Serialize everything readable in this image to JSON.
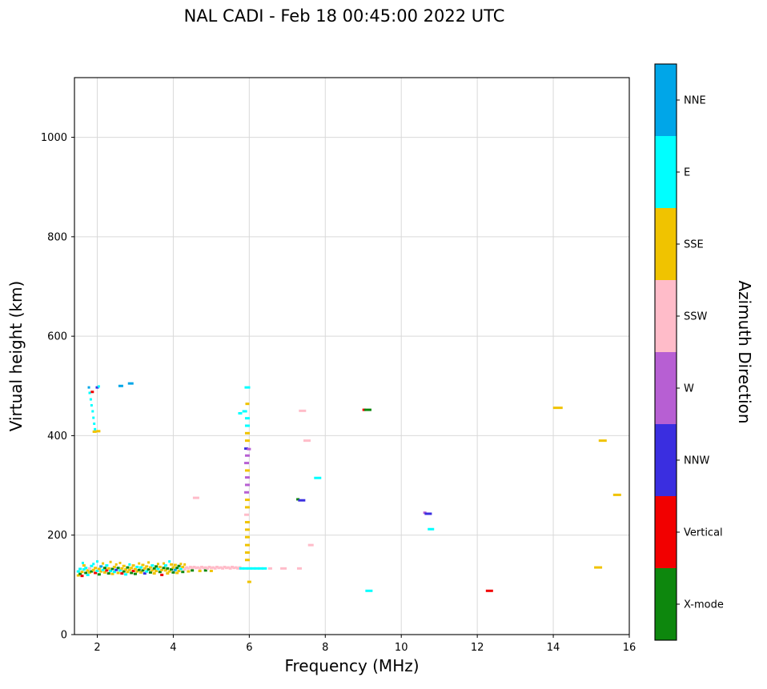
{
  "chart_data": {
    "type": "scatter",
    "title": "NAL CADI - Feb 18 00:45:00 2022 UTC",
    "xlabel": "Frequency (MHz)",
    "ylabel": "Virtual height (km)",
    "xlim": [
      1.4,
      16
    ],
    "ylim": [
      0,
      1120
    ],
    "xticks": [
      2,
      4,
      6,
      8,
      10,
      12,
      14,
      16
    ],
    "yticks": [
      0,
      200,
      400,
      600,
      800,
      1000
    ],
    "grid": true,
    "grid_color": "#d9d9d9",
    "colorbar": {
      "title": "Azimuth Direction",
      "categories": [
        {
          "key": "NNE",
          "label": "NNE",
          "color": "#00a6e8"
        },
        {
          "key": "E",
          "label": "E",
          "color": "#00ffff"
        },
        {
          "key": "SSE",
          "label": "SSE",
          "color": "#f0c300"
        },
        {
          "key": "SSW",
          "label": "SSW",
          "color": "#ffbcc9"
        },
        {
          "key": "W",
          "label": "W",
          "color": "#b75fd3"
        },
        {
          "key": "NNW",
          "label": "NNW",
          "color": "#3a2ee0"
        },
        {
          "key": "V",
          "label": "Vertical",
          "color": "#f20000"
        },
        {
          "key": "X",
          "label": "X-mode",
          "color": "#0d870d"
        }
      ]
    },
    "points": [
      [
        1.78,
        497,
        "NNE",
        3
      ],
      [
        1.8,
        486,
        "E",
        3
      ],
      [
        1.83,
        473,
        "E",
        3
      ],
      [
        1.85,
        461,
        "E",
        3
      ],
      [
        1.88,
        449,
        "E",
        3
      ],
      [
        1.9,
        436,
        "E",
        3
      ],
      [
        1.92,
        424,
        "E",
        3
      ],
      [
        1.94,
        413,
        "E",
        3
      ],
      [
        1.87,
        488,
        "V",
        4
      ],
      [
        2.0,
        497,
        "NNW",
        4
      ],
      [
        2.04,
        499,
        "E",
        3
      ],
      [
        1.93,
        408,
        "SSE",
        5
      ],
      [
        2.03,
        409,
        "SSE",
        5
      ],
      [
        2.62,
        500,
        "NNE",
        6
      ],
      [
        2.88,
        505,
        "NNE",
        7
      ],
      [
        1.5,
        127,
        "E"
      ],
      [
        1.5,
        119,
        "SSE"
      ],
      [
        1.55,
        132,
        "E"
      ],
      [
        1.55,
        122,
        "X"
      ],
      [
        1.6,
        126,
        "SSE"
      ],
      [
        1.6,
        118,
        "V"
      ],
      [
        1.62,
        144,
        "E",
        3
      ],
      [
        1.65,
        131,
        "E"
      ],
      [
        1.65,
        139,
        "SSE"
      ],
      [
        1.7,
        124,
        "X"
      ],
      [
        1.7,
        134,
        "E"
      ],
      [
        1.75,
        129,
        "SSE"
      ],
      [
        1.75,
        120,
        "E"
      ],
      [
        1.8,
        133,
        "SSW"
      ],
      [
        1.8,
        125,
        "SSE"
      ],
      [
        1.85,
        138,
        "E"
      ],
      [
        1.85,
        127,
        "X"
      ],
      [
        1.9,
        130,
        "SSE"
      ],
      [
        1.9,
        142,
        "E",
        3
      ],
      [
        1.95,
        124,
        "V"
      ],
      [
        1.95,
        134,
        "SSE"
      ],
      [
        2.0,
        128,
        "E"
      ],
      [
        2.0,
        147,
        "E",
        3
      ],
      [
        2.05,
        132,
        "SSE"
      ],
      [
        2.05,
        121,
        "X"
      ],
      [
        2.1,
        137,
        "NNE"
      ],
      [
        2.1,
        127,
        "SSE"
      ],
      [
        2.15,
        130,
        "E"
      ],
      [
        2.15,
        143,
        "SSE",
        3
      ],
      [
        2.2,
        125,
        "SSE"
      ],
      [
        2.2,
        134,
        "X"
      ],
      [
        2.25,
        129,
        "V"
      ],
      [
        2.25,
        139,
        "E"
      ],
      [
        2.3,
        133,
        "SSE"
      ],
      [
        2.3,
        123,
        "X"
      ],
      [
        2.35,
        128,
        "E"
      ],
      [
        2.35,
        146,
        "SSE",
        3
      ],
      [
        2.4,
        132,
        "X"
      ],
      [
        2.4,
        122,
        "SSE"
      ],
      [
        2.45,
        136,
        "SSE"
      ],
      [
        2.45,
        126,
        "E"
      ],
      [
        2.5,
        130,
        "NNW"
      ],
      [
        2.5,
        141,
        "SSE",
        3
      ],
      [
        2.55,
        124,
        "SSE"
      ],
      [
        2.55,
        134,
        "X"
      ],
      [
        2.6,
        129,
        "E"
      ],
      [
        2.6,
        144,
        "SSE",
        3
      ],
      [
        2.65,
        133,
        "SSE"
      ],
      [
        2.65,
        123,
        "V"
      ],
      [
        2.7,
        127,
        "X"
      ],
      [
        2.7,
        138,
        "SSE"
      ],
      [
        2.75,
        131,
        "SSE"
      ],
      [
        2.75,
        121,
        "E"
      ],
      [
        2.8,
        135,
        "X"
      ],
      [
        2.8,
        126,
        "SSE"
      ],
      [
        2.85,
        130,
        "SSE"
      ],
      [
        2.85,
        141,
        "E",
        3
      ],
      [
        2.9,
        124,
        "X"
      ],
      [
        2.9,
        134,
        "SSE"
      ],
      [
        2.95,
        128,
        "V"
      ],
      [
        2.95,
        139,
        "SSE"
      ],
      [
        3.0,
        132,
        "SSE"
      ],
      [
        3.0,
        122,
        "X"
      ],
      [
        3.05,
        136,
        "E"
      ],
      [
        3.05,
        127,
        "SSE"
      ],
      [
        3.1,
        130,
        "X"
      ],
      [
        3.1,
        143,
        "SSE",
        3
      ],
      [
        3.15,
        125,
        "SSE"
      ],
      [
        3.15,
        135,
        "E"
      ],
      [
        3.2,
        129,
        "X"
      ],
      [
        3.2,
        140,
        "SSE"
      ],
      [
        3.25,
        133,
        "SSE"
      ],
      [
        3.25,
        123,
        "NNW"
      ],
      [
        3.3,
        127,
        "E"
      ],
      [
        3.3,
        137,
        "SSE"
      ],
      [
        3.35,
        131,
        "X"
      ],
      [
        3.35,
        145,
        "SSE",
        3
      ],
      [
        3.4,
        135,
        "SSE"
      ],
      [
        3.4,
        125,
        "X"
      ],
      [
        3.45,
        129,
        "SSE"
      ],
      [
        3.45,
        139,
        "E"
      ],
      [
        3.5,
        133,
        "X"
      ],
      [
        3.5,
        123,
        "SSE"
      ],
      [
        3.55,
        128,
        "SSE"
      ],
      [
        3.55,
        137,
        "X"
      ],
      [
        3.6,
        132,
        "E"
      ],
      [
        3.6,
        142,
        "SSE",
        3
      ],
      [
        3.65,
        126,
        "X"
      ],
      [
        3.65,
        136,
        "SSE"
      ],
      [
        3.7,
        130,
        "SSE"
      ],
      [
        3.7,
        120,
        "V"
      ],
      [
        3.75,
        134,
        "X"
      ],
      [
        3.75,
        143,
        "SSE",
        3
      ],
      [
        3.8,
        129,
        "SSE"
      ],
      [
        3.8,
        139,
        "E"
      ],
      [
        3.85,
        133,
        "X"
      ],
      [
        3.85,
        123,
        "SSE"
      ],
      [
        3.9,
        127,
        "SSE"
      ],
      [
        3.9,
        147,
        "E",
        3
      ],
      [
        3.95,
        131,
        "X"
      ],
      [
        3.95,
        141,
        "SSE"
      ],
      [
        4.0,
        135,
        "SSE"
      ],
      [
        4.0,
        125,
        "X"
      ],
      [
        4.05,
        130,
        "NNE"
      ],
      [
        4.05,
        140,
        "SSE"
      ],
      [
        4.1,
        134,
        "X"
      ],
      [
        4.1,
        124,
        "SSE"
      ],
      [
        4.15,
        128,
        "SSE"
      ],
      [
        4.15,
        138,
        "X"
      ],
      [
        4.2,
        132,
        "E"
      ],
      [
        4.2,
        142,
        "SSE",
        3
      ],
      [
        4.25,
        136,
        "SSE"
      ],
      [
        4.25,
        126,
        "X"
      ],
      [
        4.3,
        131,
        "SSW"
      ],
      [
        4.3,
        141,
        "SSE",
        3
      ],
      [
        4.35,
        135,
        "SSW"
      ],
      [
        4.4,
        133,
        "SSW"
      ],
      [
        4.4,
        127,
        "SSE"
      ],
      [
        4.45,
        136,
        "SSW"
      ],
      [
        4.5,
        134,
        "SSW"
      ],
      [
        4.5,
        129,
        "X"
      ],
      [
        4.55,
        136,
        "SSW"
      ],
      [
        4.6,
        134,
        "SSW"
      ],
      [
        4.6,
        275,
        "SSW",
        8
      ],
      [
        4.65,
        135,
        "SSW"
      ],
      [
        4.7,
        133,
        "SSW"
      ],
      [
        4.7,
        128,
        "SSE"
      ],
      [
        4.75,
        136,
        "SSW"
      ],
      [
        4.8,
        134,
        "SSW"
      ],
      [
        4.85,
        135,
        "SSW"
      ],
      [
        4.85,
        129,
        "X"
      ],
      [
        4.9,
        133,
        "SSW"
      ],
      [
        4.95,
        136,
        "SSW"
      ],
      [
        5.0,
        134,
        "SSW"
      ],
      [
        5.0,
        128,
        "SSE"
      ],
      [
        5.05,
        135,
        "SSW"
      ],
      [
        5.1,
        133,
        "SSW"
      ],
      [
        5.15,
        136,
        "SSW"
      ],
      [
        5.2,
        134,
        "SSW"
      ],
      [
        5.25,
        135,
        "SSW"
      ],
      [
        5.3,
        133,
        "SSW"
      ],
      [
        5.35,
        136,
        "SSW"
      ],
      [
        5.4,
        134,
        "SSW"
      ],
      [
        5.45,
        135,
        "SSW"
      ],
      [
        5.5,
        133,
        "SSW"
      ],
      [
        5.55,
        136,
        "SSW"
      ],
      [
        5.6,
        134,
        "SSW"
      ],
      [
        5.65,
        135,
        "SSW"
      ],
      [
        5.7,
        133,
        "SSW"
      ],
      [
        5.75,
        135,
        "SSW"
      ],
      [
        5.8,
        133,
        "E",
        6
      ],
      [
        5.9,
        133,
        "E",
        6
      ],
      [
        6.0,
        133,
        "E",
        6
      ],
      [
        6.1,
        133,
        "E",
        6
      ],
      [
        6.2,
        133,
        "E",
        6
      ],
      [
        6.3,
        133,
        "E",
        6
      ],
      [
        6.4,
        133,
        "E",
        6
      ],
      [
        6.55,
        133,
        "SSW",
        5
      ],
      [
        6.9,
        133,
        "SSW",
        8
      ],
      [
        7.32,
        133,
        "SSW",
        6
      ],
      [
        6.0,
        106,
        "SSE",
        5
      ],
      [
        5.95,
        150,
        "SSE",
        6
      ],
      [
        5.95,
        165,
        "SSE",
        6
      ],
      [
        5.95,
        180,
        "SSE",
        6
      ],
      [
        5.95,
        196,
        "SSE",
        6
      ],
      [
        5.95,
        211,
        "SSE",
        6
      ],
      [
        5.95,
        226,
        "SSE",
        6
      ],
      [
        5.93,
        241,
        "SSW",
        6
      ],
      [
        5.95,
        256,
        "SSE",
        6
      ],
      [
        5.95,
        271,
        "SSE",
        6
      ],
      [
        5.93,
        286,
        "W",
        6
      ],
      [
        5.95,
        301,
        "W",
        6
      ],
      [
        5.95,
        316,
        "W",
        6
      ],
      [
        5.95,
        330,
        "SSE",
        6
      ],
      [
        5.93,
        345,
        "W",
        6
      ],
      [
        5.95,
        360,
        "W",
        6
      ],
      [
        5.92,
        374,
        "NNW",
        5
      ],
      [
        5.99,
        373,
        "W",
        5
      ],
      [
        5.95,
        390,
        "SSE",
        6
      ],
      [
        5.95,
        405,
        "SSE",
        6
      ],
      [
        5.95,
        420,
        "E",
        6
      ],
      [
        5.95,
        435,
        "E",
        6
      ],
      [
        5.88,
        449,
        "E",
        6
      ],
      [
        5.76,
        445,
        "E",
        5
      ],
      [
        5.95,
        464,
        "SSE",
        5
      ],
      [
        5.95,
        497,
        "E",
        7
      ],
      [
        7.4,
        450,
        "SSW",
        9
      ],
      [
        7.52,
        390,
        "SSW",
        9
      ],
      [
        7.28,
        272,
        "X",
        4
      ],
      [
        7.38,
        270,
        "NNW",
        9
      ],
      [
        7.8,
        315,
        "E",
        9
      ],
      [
        7.62,
        180,
        "SSW",
        7
      ],
      [
        9.02,
        452,
        "V",
        4
      ],
      [
        9.12,
        452,
        "X",
        9
      ],
      [
        9.15,
        88,
        "E",
        9
      ],
      [
        10.62,
        245,
        "W",
        4
      ],
      [
        10.71,
        243,
        "NNW",
        9
      ],
      [
        10.78,
        212,
        "E",
        8
      ],
      [
        12.32,
        88,
        "V",
        9
      ],
      [
        14.12,
        456,
        "SSE",
        12
      ],
      [
        15.3,
        390,
        "SSE",
        10
      ],
      [
        15.68,
        281,
        "SSE",
        10
      ],
      [
        15.18,
        135,
        "SSE",
        10
      ]
    ]
  }
}
